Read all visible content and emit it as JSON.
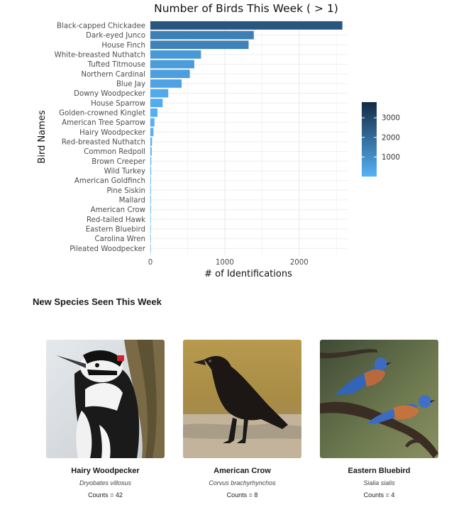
{
  "chart_data": {
    "type": "bar",
    "orientation": "horizontal",
    "title": "Number of Birds This Week ( > 1)",
    "xlabel": "# of Identifications",
    "ylabel": "Bird Names",
    "xlim": [
      0,
      2650
    ],
    "xticks": [
      0,
      1000,
      2000
    ],
    "categories": [
      "Black-capped Chickadee",
      "Dark-eyed Junco",
      "House Finch",
      "White-breasted Nuthatch",
      "Tufted Titmouse",
      "Northern Cardinal",
      "Blue Jay",
      "Downy Woodpecker",
      "House Sparrow",
      "Golden-crowned Kinglet",
      "American Tree Sparrow",
      "Hairy Woodpecker",
      "Red-breasted Nuthatch",
      "Common Redpoll",
      "Brown Creeper",
      "Wild Turkey",
      "American Goldfinch",
      "Pine Siskin",
      "Mallard",
      "American Crow",
      "Red-tailed Hawk",
      "Eastern Bluebird",
      "Carolina Wren",
      "Pileated Woodpecker"
    ],
    "values": [
      2580,
      1390,
      1320,
      680,
      590,
      530,
      420,
      240,
      165,
      95,
      55,
      42,
      22,
      18,
      12,
      10,
      8,
      8,
      8,
      8,
      6,
      4,
      3,
      2
    ],
    "grid": true,
    "legend": {
      "type": "colorbar",
      "placement": "right",
      "ticks": [
        1000,
        2000,
        3000
      ],
      "range": [
        0,
        3800
      ],
      "color_low": "#56B1F7",
      "color_high": "#132B43"
    }
  },
  "new_species": {
    "title": "New Species Seen This Week",
    "cards": [
      {
        "name": "Hairy Woodpecker",
        "scientific": "Dryobates villosus",
        "count": "Counts = 42"
      },
      {
        "name": "American Crow",
        "scientific": "Corvus brachyrhynchos",
        "count": "Counts = 8"
      },
      {
        "name": "Eastern Bluebird",
        "scientific": "Sialia sialis",
        "count": "Counts = 4"
      }
    ]
  }
}
